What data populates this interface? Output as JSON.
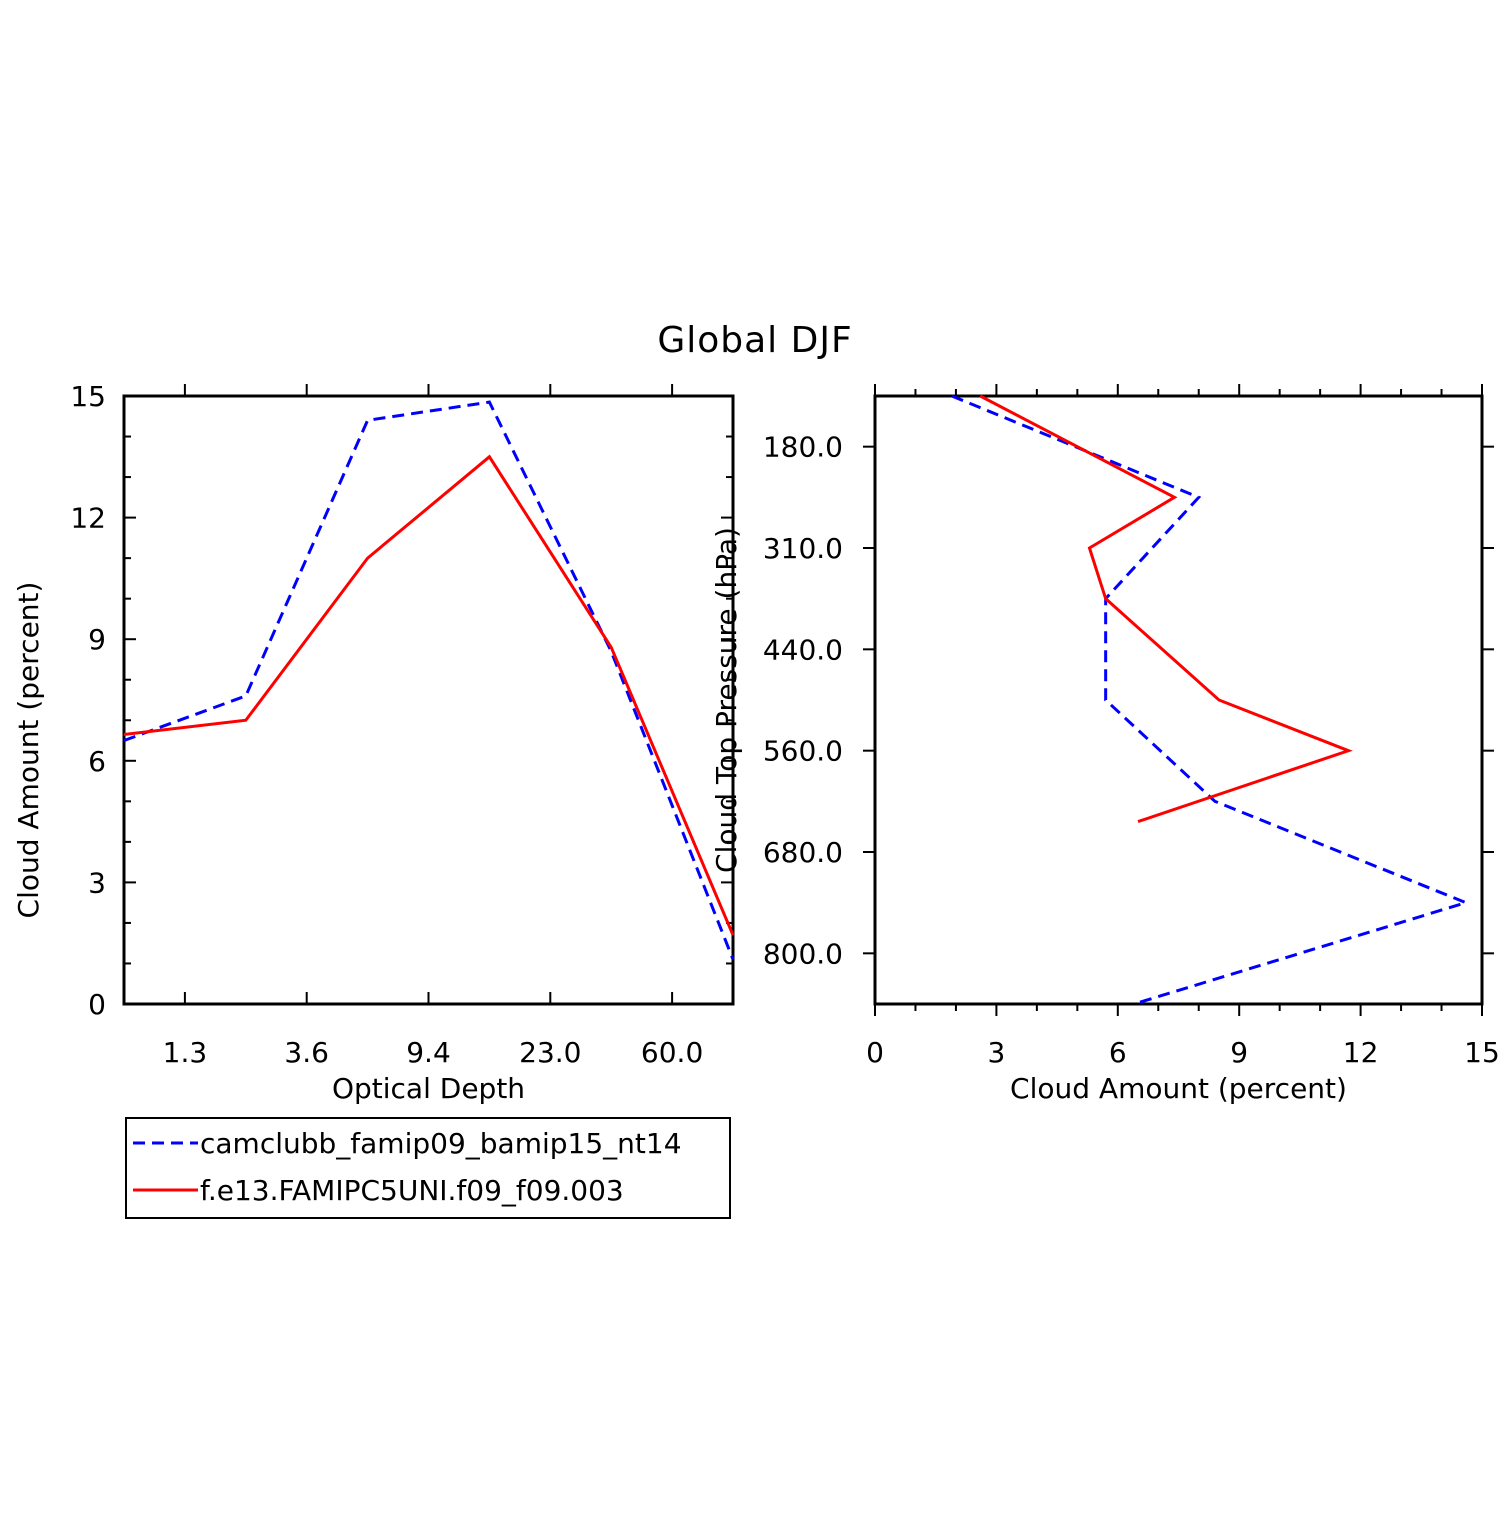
{
  "figure_title": "Global DJF",
  "colors": {
    "series_a": "#0000ff",
    "series_b": "#ff0000",
    "axes": "#000000"
  },
  "legend": {
    "entries": [
      {
        "label": "camclubb_famip09_bamip15_nt14",
        "style": "dashed",
        "color": "#0000ff"
      },
      {
        "label": "f.e13.FAMIPC5UNI.f09_f09.003",
        "style": "solid",
        "color": "#ff0000"
      }
    ]
  },
  "chart_data": [
    {
      "type": "line",
      "title": "",
      "xlabel": "Optical Depth",
      "ylabel": "Cloud Amount (percent)",
      "x_categories": [
        "1.3",
        "3.6",
        "9.4",
        "23.0",
        "60.0"
      ],
      "x_tick_labels": [
        "1.3",
        "3.6",
        "9.4",
        "23.0",
        "60.0"
      ],
      "ylim": [
        0,
        15
      ],
      "y_ticks": [
        0,
        3,
        6,
        9,
        12,
        15
      ],
      "grid": false,
      "series": [
        {
          "name": "camclubb_famip09_bamip15_nt14",
          "style": "dashed",
          "color": "#0000ff",
          "points": [
            [
              0,
              6.5
            ],
            [
              1,
              7.6
            ],
            [
              2,
              14.4
            ],
            [
              3,
              14.85
            ],
            [
              4,
              8.7
            ],
            [
              5,
              1.1
            ]
          ]
        },
        {
          "name": "f.e13.FAMIPC5UNI.f09_f09.003",
          "style": "solid",
          "color": "#ff0000",
          "points": [
            [
              0,
              6.65
            ],
            [
              1,
              7.0
            ],
            [
              2,
              11.0
            ],
            [
              3,
              13.5
            ],
            [
              4,
              8.8
            ],
            [
              5,
              1.7
            ]
          ]
        }
      ]
    },
    {
      "type": "line",
      "title": "",
      "xlabel": "Cloud Amount (percent)",
      "ylabel": "Cloud Top Pressure (hPa)",
      "y_tick_labels": [
        "180.0",
        "310.0",
        "440.0",
        "560.0",
        "680.0",
        "800.0"
      ],
      "y_ticks": [
        180,
        310,
        440,
        560,
        680,
        800
      ],
      "xlim": [
        0,
        15
      ],
      "x_ticks": [
        0,
        3,
        6,
        9,
        12,
        15
      ],
      "grid": false,
      "series": [
        {
          "name": "camclubb_famip09_bamip15_nt14",
          "style": "dashed",
          "color": "#0000ff",
          "points": [
            [
              1.9,
              0
            ],
            [
              8.0,
              1
            ],
            [
              5.7,
              2
            ],
            [
              5.7,
              3
            ],
            [
              8.4,
              4
            ],
            [
              14.6,
              5
            ],
            [
              6.4,
              6
            ]
          ]
        },
        {
          "name": "f.e13.FAMIPC5UNI.f09_f09.003",
          "style": "solid",
          "color": "#ff0000",
          "points": [
            [
              2.6,
              0
            ],
            [
              7.4,
              1
            ],
            [
              5.3,
              1.5
            ],
            [
              5.7,
              2
            ],
            [
              8.5,
              3.0
            ],
            [
              11.7,
              3.5
            ],
            [
              6.5,
              4.2
            ]
          ]
        }
      ]
    }
  ]
}
